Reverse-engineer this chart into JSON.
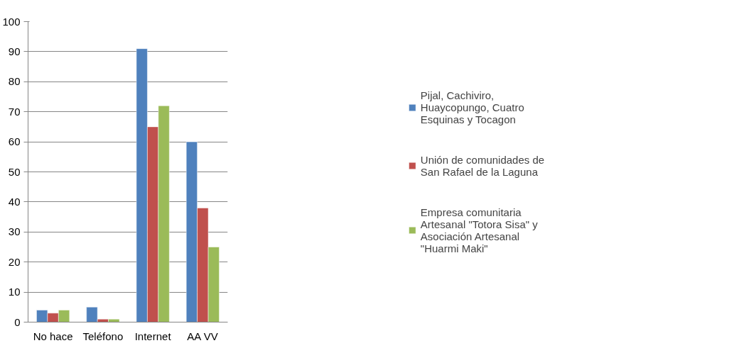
{
  "chart_data": {
    "type": "bar",
    "categories": [
      "No hace",
      "Teléfono",
      "Internet",
      "AA VV"
    ],
    "series": [
      {
        "name": "Pijal, Cachiviro, Huaycopungo, Cuatro Esquinas y Tocagon",
        "color": "#4f81bd",
        "values": [
          4,
          5,
          91,
          60
        ]
      },
      {
        "name": "Unión de comunidades de San Rafael de la Laguna",
        "color": "#c0504d",
        "values": [
          3,
          1,
          65,
          38
        ]
      },
      {
        "name": "Empresa comunitaria Artesanal \"Totora Sisa\" y Asociación Artesanal \"Huarmi Maki\"",
        "color": "#9bbb59",
        "values": [
          4,
          1,
          72,
          25
        ]
      }
    ],
    "ylim": [
      0,
      100
    ],
    "yticks": [
      0,
      10,
      20,
      30,
      40,
      50,
      60,
      70,
      80,
      90,
      100
    ],
    "grid": "y",
    "legend": "right"
  }
}
